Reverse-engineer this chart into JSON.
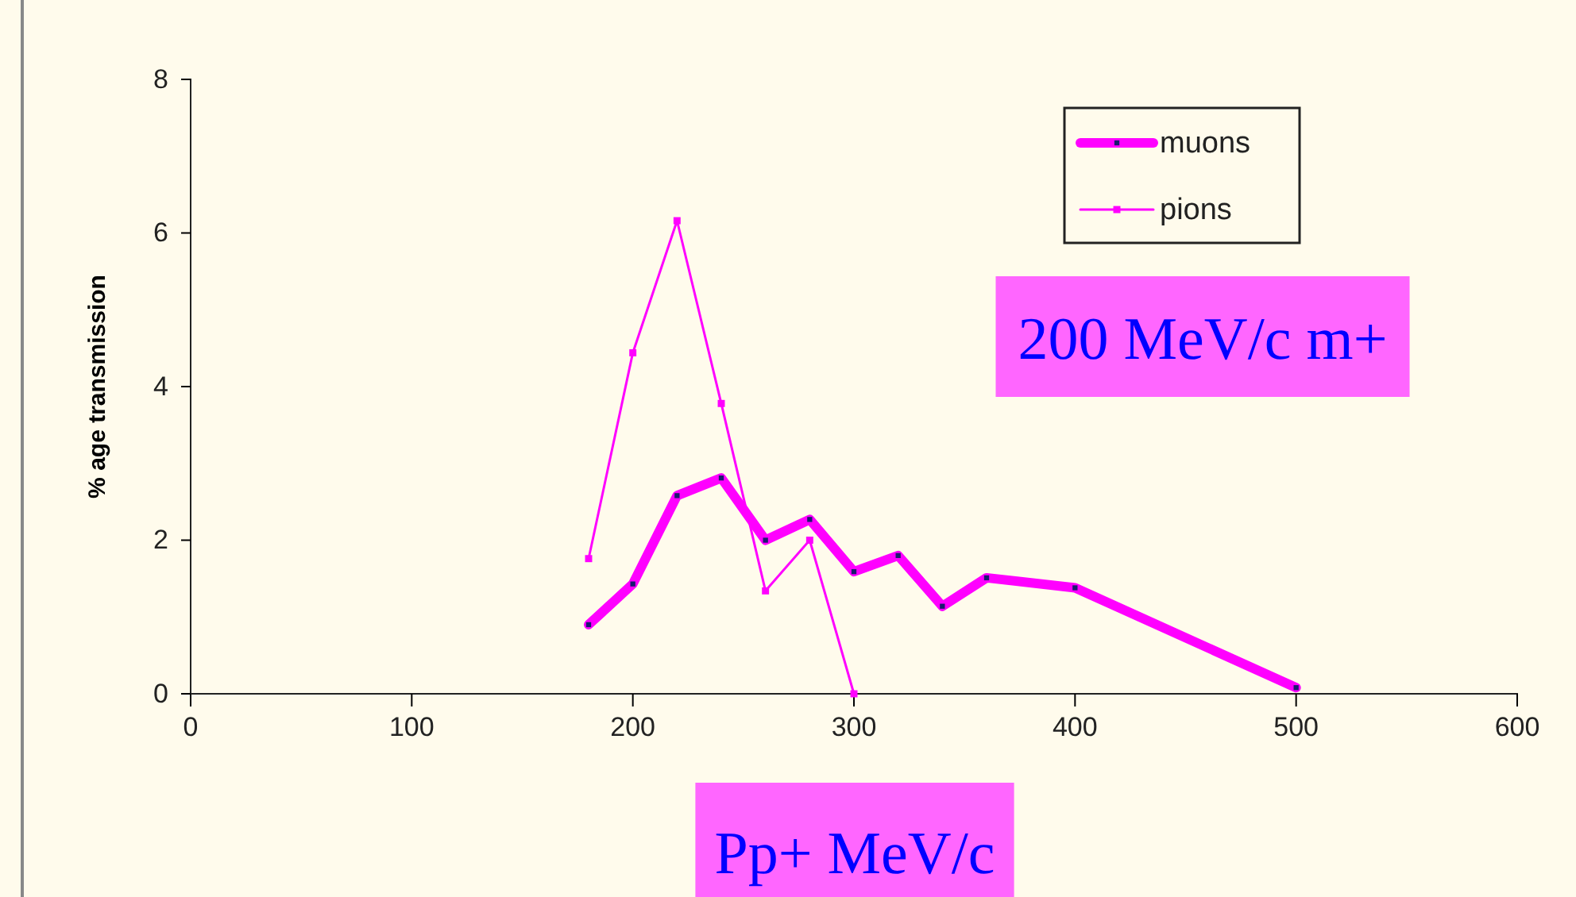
{
  "chart_data": {
    "type": "line",
    "ylabel": "% age transmission",
    "xlabel": "Pp+ MeV/c",
    "annotations": [
      "200 MeV/c m+"
    ],
    "xlim": [
      0,
      600
    ],
    "xticks": [
      0,
      100,
      200,
      300,
      400,
      500,
      600
    ],
    "ylim": [
      0,
      8
    ],
    "yticks": [
      0,
      2,
      4,
      6,
      8
    ],
    "legend": "top right",
    "grid": false,
    "marker": "square",
    "line_style": "solid",
    "series": [
      {
        "name": "muons",
        "color": "#ff00ff",
        "x": [
          180,
          200,
          220,
          240,
          260,
          280,
          300,
          320,
          340,
          360,
          400,
          500
        ],
        "values": [
          0.9,
          1.43,
          2.58,
          2.81,
          2.0,
          2.27,
          1.59,
          1.8,
          1.14,
          1.51,
          1.38,
          0.08
        ]
      },
      {
        "name": "pions",
        "color": "#ff00ff",
        "x": [
          180,
          200,
          220,
          240,
          260,
          280,
          300
        ],
        "values": [
          1.76,
          4.44,
          6.16,
          3.78,
          1.34,
          2.0,
          0
        ]
      }
    ]
  }
}
